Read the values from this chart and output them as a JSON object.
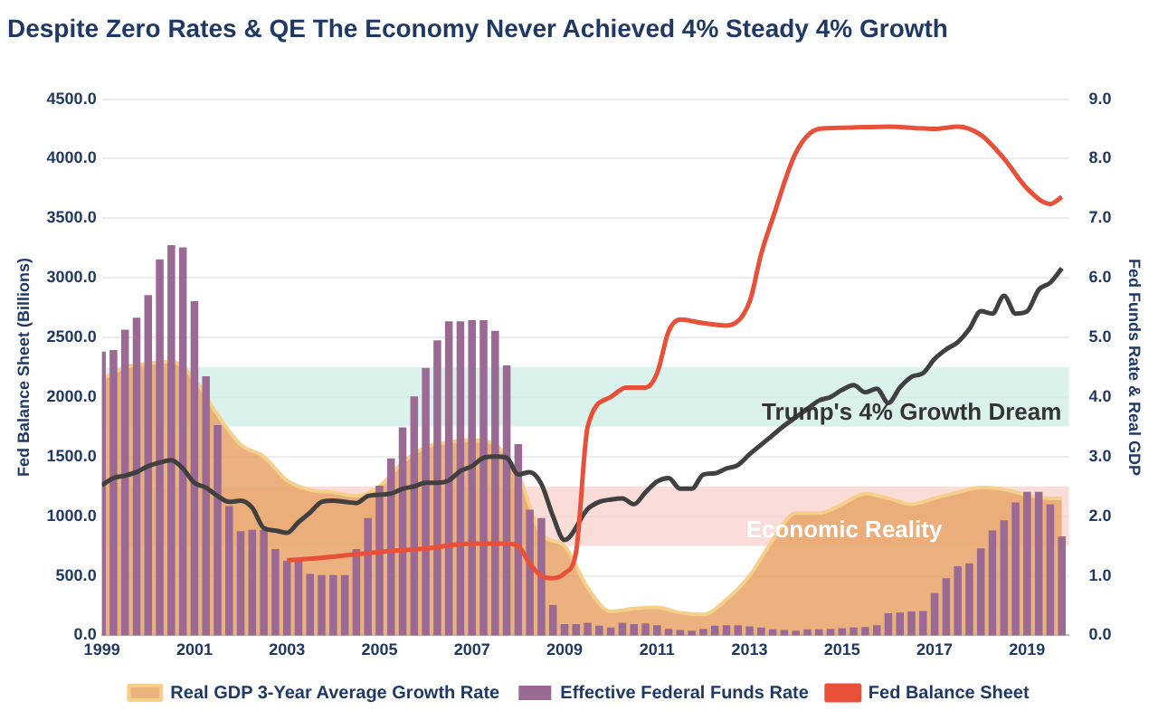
{
  "chart_data": {
    "type": "line",
    "title": "Despite Zero Rates & QE The Economy Never Achieved 4% Steady 4% Growth",
    "ylabel": "Fed Balance Sheet (Billions)",
    "y2label": "Fed Funds Rate & Real GDP",
    "xlim": [
      1999,
      2019.9
    ],
    "xticks": [
      1999,
      2001,
      2003,
      2005,
      2007,
      2009,
      2011,
      2013,
      2015,
      2017,
      2019
    ],
    "ylim": [
      0,
      4500
    ],
    "yticks": [
      {
        "value": 0,
        "label": "0.0"
      },
      {
        "value": 500,
        "label": "500.0"
      },
      {
        "value": 1000,
        "label": "1000.0"
      },
      {
        "value": 1500,
        "label": "1500.0"
      },
      {
        "value": 2000,
        "label": "2000.0"
      },
      {
        "value": 2500,
        "label": "2500.0"
      },
      {
        "value": 3000,
        "label": "3000.0"
      },
      {
        "value": 3500,
        "label": "3500.0"
      },
      {
        "value": 4000,
        "label": "4000.0"
      },
      {
        "value": 4500,
        "label": "4500.0"
      }
    ],
    "y2lim": [
      0,
      9
    ],
    "y2ticks": [
      {
        "value": 0,
        "label": "0.0"
      },
      {
        "value": 1,
        "label": "1.0"
      },
      {
        "value": 2,
        "label": "2.0"
      },
      {
        "value": 3,
        "label": "3.0"
      },
      {
        "value": 4,
        "label": "4.0"
      },
      {
        "value": 5,
        "label": "5.0"
      },
      {
        "value": 6,
        "label": "6.0"
      },
      {
        "value": 7,
        "label": "7.0"
      },
      {
        "value": 8,
        "label": "8.0"
      },
      {
        "value": 9,
        "label": "9.0"
      }
    ],
    "grid": "y",
    "legend": "bottom",
    "bands": [
      {
        "axis": "y2",
        "from": 3.5,
        "to": 4.5,
        "label": "Trump's 4% Growth Dream",
        "color": "#cfeee6"
      },
      {
        "axis": "y2",
        "from": 1.5,
        "to": 2.5,
        "label": "Economic Reality",
        "color": "#f8d0cc"
      }
    ],
    "series": [
      {
        "name": "Real GDP 3-Year Average Growth Rate",
        "type": "area",
        "axis": "y2",
        "color": "#e8a468",
        "x": [
          1999,
          1999.5,
          2000,
          2000.5,
          2001,
          2001.5,
          2002,
          2002.5,
          2003,
          2003.5,
          2004,
          2004.5,
          2005,
          2005.5,
          2006,
          2006.5,
          2007,
          2007.5,
          2008,
          2008.5,
          2009,
          2009.5,
          2010,
          2010.5,
          2011,
          2011.5,
          2012,
          2012.5,
          2013,
          2013.5,
          2014,
          2014.5,
          2015,
          2015.5,
          2016,
          2016.5,
          2017,
          2017.5,
          2018,
          2018.5,
          2019,
          2019.5,
          2019.75
        ],
        "values": [
          4.3,
          4.5,
          4.56,
          4.6,
          4.3,
          3.7,
          3.2,
          3.0,
          2.6,
          2.44,
          2.4,
          2.34,
          2.5,
          2.9,
          3.16,
          3.24,
          3.28,
          3.2,
          2.7,
          1.7,
          1.5,
          0.8,
          0.4,
          0.45,
          0.47,
          0.38,
          0.35,
          0.6,
          1.0,
          1.6,
          2.05,
          2.05,
          2.2,
          2.38,
          2.3,
          2.2,
          2.3,
          2.4,
          2.48,
          2.45,
          2.35,
          2.3,
          2.3
        ]
      },
      {
        "name": "Effective Federal Funds Rate",
        "type": "bar",
        "axis": "y2",
        "color": "#9a6a94",
        "x": [
          1999,
          1999.25,
          1999.5,
          1999.75,
          2000,
          2000.25,
          2000.5,
          2000.75,
          2001,
          2001.25,
          2001.5,
          2001.75,
          2002,
          2002.25,
          2002.5,
          2002.75,
          2003,
          2003.25,
          2003.5,
          2003.75,
          2004,
          2004.25,
          2004.5,
          2004.75,
          2005,
          2005.25,
          2005.5,
          2005.75,
          2006,
          2006.25,
          2006.5,
          2006.75,
          2007,
          2007.25,
          2007.5,
          2007.75,
          2008,
          2008.25,
          2008.5,
          2008.75,
          2009,
          2009.25,
          2009.5,
          2009.75,
          2010,
          2010.25,
          2010.5,
          2010.75,
          2011,
          2011.25,
          2011.5,
          2011.75,
          2012,
          2012.25,
          2012.5,
          2012.75,
          2013,
          2013.25,
          2013.5,
          2013.75,
          2014,
          2014.25,
          2014.5,
          2014.75,
          2015,
          2015.25,
          2015.5,
          2015.75,
          2016,
          2016.25,
          2016.5,
          2016.75,
          2017,
          2017.25,
          2017.5,
          2017.75,
          2018,
          2018.25,
          2018.5,
          2018.75,
          2019,
          2019.25,
          2019.5,
          2019.75
        ],
        "values": [
          4.75,
          4.78,
          5.12,
          5.32,
          5.7,
          6.3,
          6.54,
          6.5,
          5.6,
          4.34,
          3.52,
          2.16,
          1.74,
          1.76,
          1.76,
          1.44,
          1.24,
          1.24,
          1.02,
          1.0,
          1.0,
          1.0,
          1.44,
          1.96,
          2.5,
          2.96,
          3.48,
          4.0,
          4.48,
          4.94,
          5.26,
          5.26,
          5.28,
          5.28,
          5.1,
          4.52,
          3.2,
          2.1,
          1.96,
          0.5,
          0.18,
          0.18,
          0.2,
          0.15,
          0.12,
          0.2,
          0.18,
          0.19,
          0.16,
          0.1,
          0.08,
          0.07,
          0.1,
          0.15,
          0.16,
          0.16,
          0.14,
          0.12,
          0.09,
          0.08,
          0.07,
          0.09,
          0.09,
          0.1,
          0.11,
          0.12,
          0.13,
          0.16,
          0.36,
          0.37,
          0.39,
          0.4,
          0.7,
          0.95,
          1.15,
          1.2,
          1.45,
          1.75,
          1.92,
          2.22,
          2.4,
          2.4,
          2.19,
          1.65
        ]
      },
      {
        "name": "Fed Balance Sheet",
        "color": "#e8503a",
        "x": [
          2003,
          2004,
          2005,
          2006,
          2007,
          2007.75,
          2008,
          2008.25,
          2008.5,
          2008.75,
          2009,
          2009.25,
          2009.5,
          2010,
          2010.33,
          2010.75,
          2011,
          2011.25,
          2011.5,
          2012,
          2012.5,
          2013,
          2013.25,
          2013.5,
          2014,
          2014.5,
          2015,
          2016,
          2017,
          2017.5,
          2018,
          2018.5,
          2019,
          2019.5,
          2019.75
        ],
        "values": [
          630,
          660,
          700,
          730,
          770,
          770,
          750,
          600,
          500,
          480,
          520,
          700,
          1750,
          2000,
          2080,
          2080,
          2200,
          2550,
          2650,
          2620,
          2600,
          2800,
          3200,
          3500,
          4050,
          4250,
          4260,
          4270,
          4250,
          4270,
          4200,
          4000,
          3750,
          3620,
          3680
        ]
      },
      {
        "color": "#404040",
        "x": [
          1999,
          1999.25,
          1999.5,
          1999.75,
          2000,
          2000.25,
          2000.5,
          2000.75,
          2001,
          2001.25,
          2001.5,
          2001.75,
          2002,
          2002.25,
          2002.5,
          2002.75,
          2003,
          2003.25,
          2003.5,
          2003.75,
          2004,
          2004.25,
          2004.5,
          2004.75,
          2005,
          2005.25,
          2005.5,
          2005.75,
          2006,
          2006.25,
          2006.5,
          2006.75,
          2007,
          2007.25,
          2007.5,
          2007.75,
          2008,
          2008.25,
          2008.5,
          2008.75,
          2009,
          2009.5,
          2009.75,
          2010,
          2010.25,
          2010.5,
          2010.75,
          2011,
          2011.25,
          2011.5,
          2011.75,
          2012,
          2012.25,
          2012.5,
          2012.75,
          2013,
          2013.25,
          2013.5,
          2013.75,
          2014,
          2014.25,
          2014.5,
          2014.75,
          2015,
          2015.25,
          2015.5,
          2015.75,
          2016,
          2016.25,
          2016.5,
          2016.75,
          2017,
          2017.25,
          2017.5,
          2017.75,
          2018,
          2018.25,
          2018.5,
          2018.75,
          2019,
          2019.25,
          2019.5,
          2019.75
        ],
        "values": [
          1260,
          1320,
          1340,
          1370,
          1420,
          1450,
          1470,
          1400,
          1280,
          1240,
          1170,
          1120,
          1130,
          1070,
          900,
          880,
          860,
          950,
          1030,
          1120,
          1130,
          1120,
          1110,
          1170,
          1180,
          1190,
          1230,
          1250,
          1280,
          1280,
          1300,
          1380,
          1420,
          1490,
          1500,
          1490,
          1350,
          1370,
          1270,
          1000,
          800,
          1060,
          1120,
          1140,
          1150,
          1100,
          1200,
          1290,
          1320,
          1230,
          1230,
          1350,
          1360,
          1400,
          1430,
          1520,
          1600,
          1680,
          1760,
          1830,
          1900,
          1970,
          2000,
          2060,
          2100,
          2040,
          2070,
          1950,
          2080,
          2170,
          2200,
          2320,
          2400,
          2460,
          2570,
          2720,
          2700,
          2850,
          2700,
          2720,
          2900,
          2960,
          3080
        ]
      }
    ]
  }
}
